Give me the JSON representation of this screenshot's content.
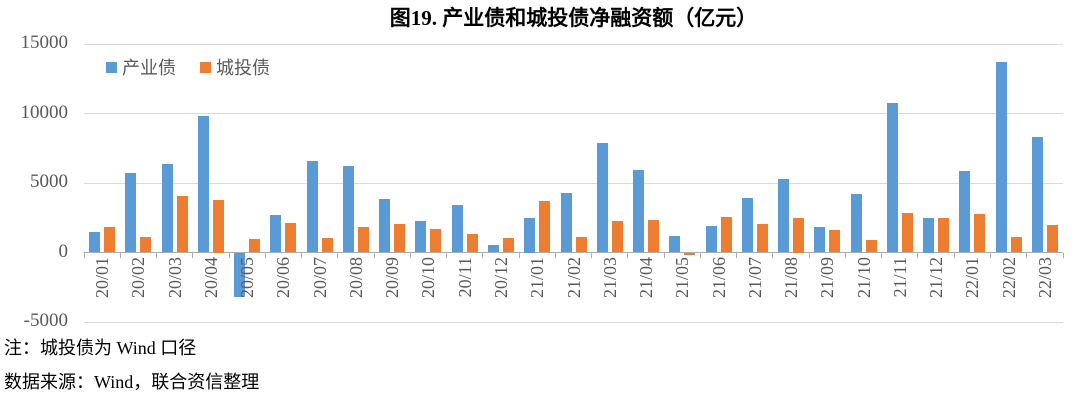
{
  "page": {
    "note1": "注：城投债为 Wind 口径",
    "note2": "数据来源：Wind，联合资信整理"
  },
  "colors": {
    "industrial_blue": "#5B9BD5",
    "urban_orange": "#ED7D31",
    "gridline": "#D9D9D9",
    "axis": "#ADADAD",
    "tick_text": "#595959"
  },
  "chart_data": {
    "type": "bar",
    "title": "图19. 产业债和城投债净融资额（亿元）",
    "categories": [
      "20/01",
      "20/02",
      "20/03",
      "20/04",
      "20/05",
      "20/06",
      "20/07",
      "20/08",
      "20/09",
      "20/10",
      "20/11",
      "20/12",
      "21/01",
      "21/02",
      "21/03",
      "21/04",
      "21/05",
      "21/06",
      "21/07",
      "21/08",
      "21/09",
      "21/10",
      "21/11",
      "21/12",
      "22/01",
      "22/02",
      "22/03"
    ],
    "series": [
      {
        "name": "产业债",
        "color": "#5B9BD5",
        "values": [
          1450,
          5700,
          6400,
          9800,
          -3200,
          2700,
          6600,
          6200,
          3850,
          2300,
          3450,
          550,
          2500,
          4300,
          7900,
          5900,
          1200,
          1900,
          3900,
          5300,
          1800,
          4200,
          10750,
          2500,
          5850,
          13700,
          8300
        ]
      },
      {
        "name": "城投债",
        "color": "#ED7D31",
        "values": [
          1850,
          1150,
          4050,
          3750,
          950,
          2150,
          1050,
          1800,
          2050,
          1700,
          1350,
          1050,
          3700,
          1100,
          2300,
          2350,
          -200,
          2550,
          2050,
          2500,
          1600,
          900,
          2850,
          2450,
          2800,
          1150,
          2000
        ]
      }
    ],
    "ylim": [
      -5000,
      15000
    ],
    "yticks": [
      15000,
      10000,
      5000,
      0,
      -5000
    ],
    "grid": true,
    "legend_position": "top-left",
    "xlabel": "",
    "ylabel": ""
  }
}
